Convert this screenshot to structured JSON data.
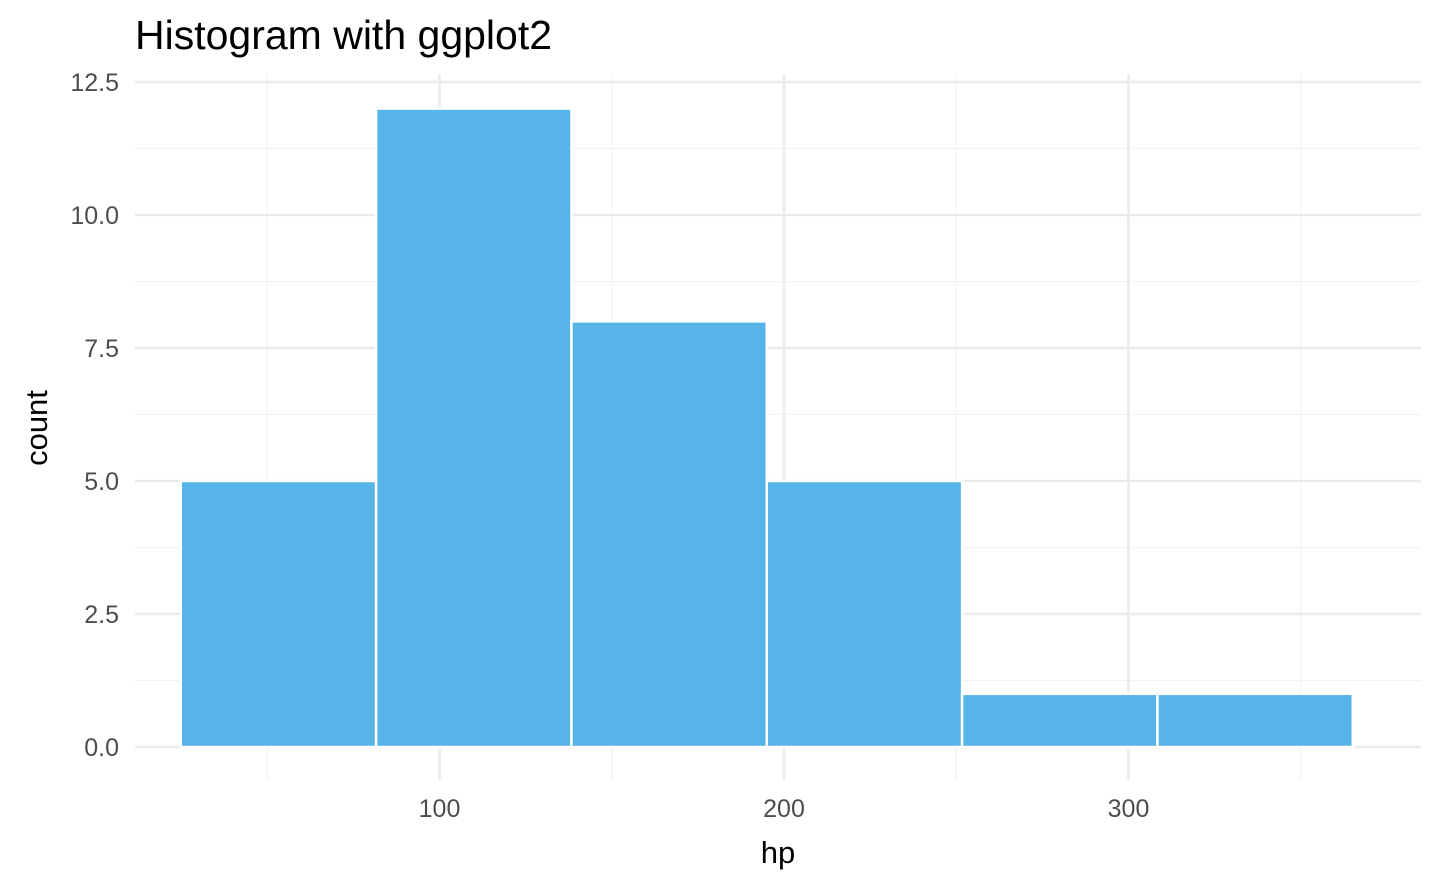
{
  "chart_data": {
    "type": "bar",
    "title": "Histogram with ggplot2",
    "xlabel": "hp",
    "ylabel": "count",
    "bins": [
      {
        "x_start": 24.9,
        "x_end": 81.6,
        "count": 5
      },
      {
        "x_start": 81.6,
        "x_end": 138.3,
        "count": 12
      },
      {
        "x_start": 138.3,
        "x_end": 195.0,
        "count": 8
      },
      {
        "x_start": 195.0,
        "x_end": 251.7,
        "count": 5
      },
      {
        "x_start": 251.7,
        "x_end": 308.4,
        "count": 1
      },
      {
        "x_start": 308.4,
        "x_end": 365.1,
        "count": 1
      }
    ],
    "xlim": [
      0,
      380
    ],
    "ylim": [
      0,
      12.5
    ],
    "x_ticks": [
      100,
      200,
      300
    ],
    "x_tick_labels": [
      "100",
      "200",
      "300"
    ],
    "y_ticks": [
      0,
      2.5,
      5,
      7.5,
      10,
      12.5
    ],
    "y_tick_labels": [
      "0.0",
      "2.5",
      "5.0",
      "7.5",
      "10.0",
      "12.5"
    ],
    "x_minor_ticks": [
      50,
      150,
      250,
      350
    ],
    "y_minor_ticks": [
      1.25,
      3.75,
      6.25,
      8.75,
      11.25
    ],
    "grid": true,
    "legend": "none",
    "colors": {
      "bar_fill": "#56B4E9",
      "bar_outline": "#ffffff",
      "grid_major": "#ebebeb",
      "grid_minor": "#f2f2f2",
      "tick_text": "#4d4d4d",
      "axis_title": "#000000"
    }
  }
}
